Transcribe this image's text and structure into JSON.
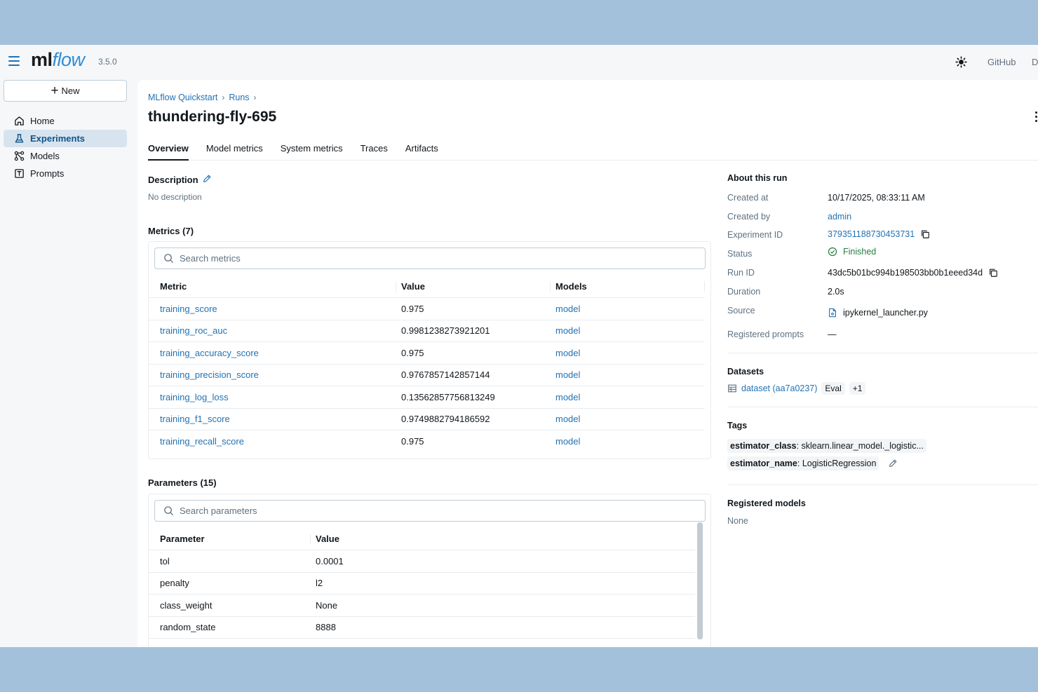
{
  "app": {
    "logo_ml": "ml",
    "logo_flow": "flow",
    "version": "3.5.0",
    "github": "GitHub",
    "docs": "D"
  },
  "sidebar": {
    "new_label": "New",
    "items": [
      {
        "label": "Home",
        "icon": "home-icon",
        "active": false
      },
      {
        "label": "Experiments",
        "icon": "beaker-icon",
        "active": true
      },
      {
        "label": "Models",
        "icon": "models-icon",
        "active": false
      },
      {
        "label": "Prompts",
        "icon": "prompt-icon",
        "active": false
      }
    ]
  },
  "breadcrumb": {
    "experiment": "MLflow Quickstart",
    "runs": "Runs",
    "sep1": "›",
    "sep2": "›"
  },
  "run": {
    "name": "thundering-fly-695"
  },
  "tabs": [
    "Overview",
    "Model metrics",
    "System metrics",
    "Traces",
    "Artifacts"
  ],
  "description": {
    "title": "Description",
    "value": "No description"
  },
  "metrics": {
    "title": "Metrics (7)",
    "search_placeholder": "Search metrics",
    "columns": [
      "Metric",
      "Value",
      "Models"
    ],
    "rows": [
      {
        "name": "training_score",
        "value": "0.975",
        "model": "model"
      },
      {
        "name": "training_roc_auc",
        "value": "0.9981238273921201",
        "model": "model"
      },
      {
        "name": "training_accuracy_score",
        "value": "0.975",
        "model": "model"
      },
      {
        "name": "training_precision_score",
        "value": "0.9767857142857144",
        "model": "model"
      },
      {
        "name": "training_log_loss",
        "value": "0.13562857756813249",
        "model": "model"
      },
      {
        "name": "training_f1_score",
        "value": "0.9749882794186592",
        "model": "model"
      },
      {
        "name": "training_recall_score",
        "value": "0.975",
        "model": "model"
      }
    ]
  },
  "parameters": {
    "title": "Parameters (15)",
    "search_placeholder": "Search parameters",
    "columns": [
      "Parameter",
      "Value"
    ],
    "rows": [
      {
        "name": "tol",
        "value": "0.0001"
      },
      {
        "name": "penalty",
        "value": "l2"
      },
      {
        "name": "class_weight",
        "value": "None"
      },
      {
        "name": "random_state",
        "value": "8888"
      }
    ]
  },
  "about": {
    "title": "About this run",
    "created_at_label": "Created at",
    "created_at": "10/17/2025, 08:33:11 AM",
    "created_by_label": "Created by",
    "created_by": "admin",
    "experiment_id_label": "Experiment ID",
    "experiment_id": "379351188730453731",
    "status_label": "Status",
    "status": "Finished",
    "run_id_label": "Run ID",
    "run_id": "43dc5b01bc994b198503bb0b1eeed34d",
    "duration_label": "Duration",
    "duration": "2.0s",
    "source_label": "Source",
    "source": "ipykernel_launcher.py",
    "registered_prompts_label": "Registered prompts",
    "registered_prompts": "—"
  },
  "datasets": {
    "title": "Datasets",
    "name": "dataset (aa7a0237)",
    "context": "Eval",
    "more": "+1"
  },
  "tags": {
    "title": "Tags",
    "items": [
      {
        "key": "estimator_class",
        "value": "sklearn.linear_model._logistic..."
      },
      {
        "key": "estimator_name",
        "value": "LogisticRegression"
      }
    ]
  },
  "registered_models": {
    "title": "Registered models",
    "value": "None"
  },
  "colors": {
    "accent": "#2272b4",
    "success": "#277c43",
    "frame": "#a3c1db"
  }
}
